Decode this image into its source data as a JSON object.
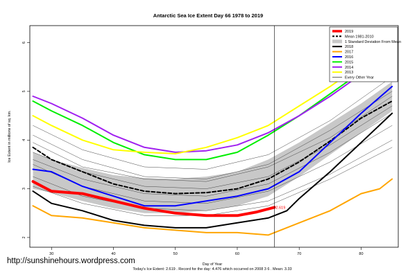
{
  "chart_data": {
    "type": "line",
    "title": "Antarctic Sea Ice Extent Day 66 1978 to 2019",
    "xlabel": "Day of Year",
    "ylabel": "Ice Extent in millions of sq. km.",
    "xlim": [
      26.5,
      86
    ],
    "ylim": [
      1.8,
      6.35
    ],
    "x_ticks": [
      30,
      40,
      50,
      60,
      70,
      80
    ],
    "y_ticks": [
      2,
      3,
      4,
      5,
      6
    ],
    "grid": false,
    "legend_position": "top-right",
    "current_day": 66,
    "current_value": 2.619,
    "current_value_label": "2.619",
    "caption": "Today's Ice Extent: 2.619 . Record for the day: 4.476 which occurred on 2008 3 6 . Mean: 3.33",
    "legend": [
      {
        "label": "2019",
        "color": "#ff0000",
        "style": "thick"
      },
      {
        "label": "Mean 1981-2010",
        "color": "#000000",
        "style": "dashed"
      },
      {
        "label": "1 Standard Deviation From Mean",
        "color": "#c8c8c8",
        "style": "band"
      },
      {
        "label": "2018",
        "color": "#000000",
        "style": "solid"
      },
      {
        "label": "2017",
        "color": "#ffa500",
        "style": "solid"
      },
      {
        "label": "2016",
        "color": "#0000ff",
        "style": "solid"
      },
      {
        "label": "2015",
        "color": "#00ee00",
        "style": "solid"
      },
      {
        "label": "2014",
        "color": "#a020f0",
        "style": "solid"
      },
      {
        "label": "2013",
        "color": "#ffff00",
        "style": "solid"
      },
      {
        "label": "Every Other Year",
        "color": "#000000",
        "style": "thin"
      }
    ],
    "band": {
      "x": [
        27,
        30,
        35,
        40,
        45,
        50,
        55,
        60,
        65,
        70,
        75,
        80,
        85
      ],
      "upper": [
        3.75,
        3.6,
        3.43,
        3.28,
        3.22,
        3.2,
        3.25,
        3.35,
        3.6,
        3.95,
        4.35,
        4.75,
        5.2
      ],
      "lower": [
        3.0,
        2.92,
        2.75,
        2.6,
        2.5,
        2.5,
        2.55,
        2.65,
        2.85,
        3.25,
        3.7,
        4.15,
        4.6
      ]
    },
    "series": [
      {
        "name": "Mean 1981-2010",
        "color": "#000000",
        "width": 2,
        "dash": "5,3",
        "x": [
          27,
          30,
          35,
          40,
          45,
          50,
          55,
          60,
          65,
          70,
          75,
          80,
          85
        ],
        "y": [
          3.85,
          3.6,
          3.35,
          3.1,
          2.95,
          2.9,
          2.92,
          3.0,
          3.2,
          3.55,
          3.98,
          4.45,
          4.8
        ]
      },
      {
        "name": "2019",
        "color": "#ff0000",
        "width": 4,
        "dash": "",
        "x": [
          27,
          30,
          35,
          40,
          45,
          50,
          55,
          60,
          63,
          66
        ],
        "y": [
          3.15,
          2.95,
          2.9,
          2.75,
          2.6,
          2.5,
          2.45,
          2.45,
          2.52,
          2.619
        ]
      },
      {
        "name": "2018",
        "color": "#000000",
        "width": 2,
        "dash": "",
        "x": [
          27,
          30,
          35,
          40,
          45,
          50,
          55,
          60,
          65,
          68,
          70,
          75,
          80,
          85
        ],
        "y": [
          2.95,
          2.7,
          2.55,
          2.35,
          2.25,
          2.2,
          2.2,
          2.3,
          2.4,
          2.55,
          2.8,
          3.35,
          3.95,
          4.55
        ]
      },
      {
        "name": "2017",
        "color": "#ffa500",
        "width": 2,
        "dash": "",
        "x": [
          27,
          30,
          35,
          40,
          45,
          50,
          55,
          60,
          65,
          70,
          75,
          80,
          83,
          85
        ],
        "y": [
          2.65,
          2.45,
          2.4,
          2.3,
          2.2,
          2.15,
          2.1,
          2.1,
          2.05,
          2.3,
          2.55,
          2.9,
          3.0,
          3.2
        ]
      },
      {
        "name": "2016",
        "color": "#0000ff",
        "width": 2,
        "dash": "",
        "x": [
          27,
          30,
          35,
          40,
          45,
          50,
          55,
          60,
          65,
          70,
          75,
          80,
          85
        ],
        "y": [
          3.4,
          3.35,
          3.05,
          2.85,
          2.65,
          2.65,
          2.75,
          2.85,
          3.0,
          3.35,
          3.95,
          4.55,
          5.1
        ]
      },
      {
        "name": "2015",
        "color": "#00ee00",
        "width": 2,
        "dash": "",
        "x": [
          27,
          30,
          35,
          40,
          45,
          50,
          55,
          60,
          65,
          70,
          75,
          80,
          85
        ],
        "y": [
          4.8,
          4.6,
          4.3,
          3.95,
          3.7,
          3.6,
          3.6,
          3.75,
          4.1,
          4.5,
          4.95,
          5.4,
          5.75
        ]
      },
      {
        "name": "2014",
        "color": "#a020f0",
        "width": 2,
        "dash": "",
        "x": [
          27,
          30,
          35,
          40,
          45,
          50,
          55,
          60,
          65,
          70,
          75,
          80,
          85
        ],
        "y": [
          4.9,
          4.75,
          4.45,
          4.1,
          3.85,
          3.75,
          3.78,
          3.9,
          4.15,
          4.5,
          4.9,
          5.35,
          5.85
        ]
      },
      {
        "name": "2013",
        "color": "#ffff00",
        "width": 2,
        "dash": "",
        "x": [
          27,
          30,
          35,
          40,
          45,
          50,
          55,
          60,
          65,
          70,
          75,
          80,
          85
        ],
        "y": [
          4.5,
          4.3,
          4.0,
          3.8,
          3.75,
          3.72,
          3.85,
          4.05,
          4.3,
          4.7,
          5.1,
          5.55,
          5.95
        ]
      },
      {
        "name": "",
        "color": "#444444",
        "width": 0.5,
        "dash": "",
        "x": [
          27,
          35,
          45,
          55,
          65,
          75,
          85
        ],
        "y": [
          3.75,
          3.35,
          3.05,
          3.0,
          3.25,
          3.9,
          4.7
        ]
      },
      {
        "name": "",
        "color": "#444444",
        "width": 0.5,
        "dash": "",
        "x": [
          27,
          35,
          45,
          55,
          65,
          75,
          85
        ],
        "y": [
          3.5,
          3.05,
          2.75,
          2.7,
          2.95,
          3.55,
          4.3
        ]
      },
      {
        "name": "",
        "color": "#444444",
        "width": 0.5,
        "dash": "",
        "x": [
          27,
          35,
          45,
          55,
          65,
          75,
          85
        ],
        "y": [
          4.1,
          3.6,
          3.25,
          3.2,
          3.5,
          4.2,
          5.0
        ]
      },
      {
        "name": "",
        "color": "#444444",
        "width": 0.5,
        "dash": "",
        "x": [
          27,
          35,
          45,
          55,
          65,
          75,
          85
        ],
        "y": [
          3.25,
          2.85,
          2.6,
          2.55,
          2.75,
          3.3,
          4.0
        ]
      },
      {
        "name": "",
        "color": "#444444",
        "width": 0.5,
        "dash": "",
        "x": [
          27,
          35,
          45,
          55,
          65,
          75,
          85
        ],
        "y": [
          3.95,
          3.45,
          3.2,
          3.15,
          3.45,
          4.05,
          4.9
        ]
      },
      {
        "name": "",
        "color": "#444444",
        "width": 0.5,
        "dash": "",
        "x": [
          27,
          35,
          45,
          55,
          65,
          75,
          85
        ],
        "y": [
          3.6,
          3.2,
          2.9,
          2.85,
          3.1,
          3.75,
          4.55
        ]
      },
      {
        "name": "",
        "color": "#444444",
        "width": 0.5,
        "dash": "",
        "x": [
          27,
          35,
          45,
          55,
          65,
          75,
          85
        ],
        "y": [
          4.3,
          3.8,
          3.45,
          3.4,
          3.7,
          4.4,
          5.3
        ]
      },
      {
        "name": "",
        "color": "#444444",
        "width": 0.5,
        "dash": "",
        "x": [
          27,
          35,
          45,
          55,
          65,
          75,
          85
        ],
        "y": [
          3.05,
          2.7,
          2.45,
          2.45,
          2.65,
          3.2,
          3.85
        ]
      }
    ]
  },
  "credit": "http://sunshinehours.wordpress.com"
}
